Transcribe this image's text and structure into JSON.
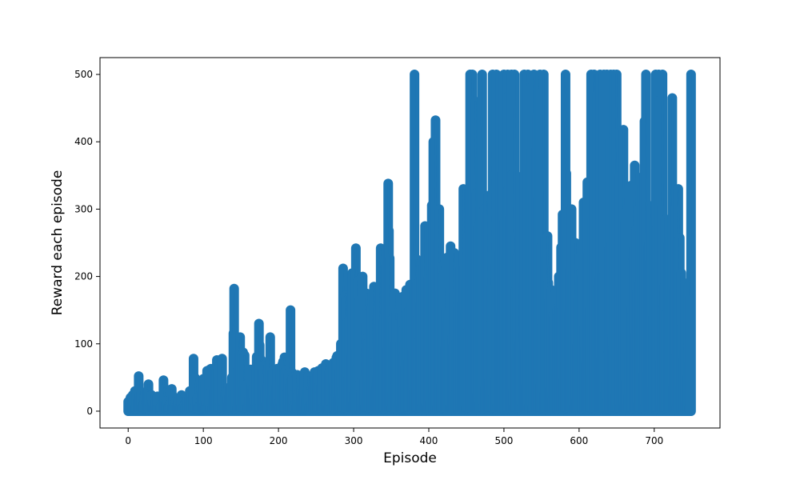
{
  "chart_data": {
    "type": "scatter",
    "title": "",
    "xlabel": "Episode",
    "ylabel": "Reward each episode",
    "xlim": [
      -37.5,
      787.5
    ],
    "ylim": [
      -25,
      525
    ],
    "xticks": [
      "0",
      "100",
      "200",
      "300",
      "400",
      "500",
      "600",
      "700"
    ],
    "yticks": [
      "0",
      "100",
      "200",
      "300",
      "400",
      "500"
    ],
    "grid": false,
    "legend": "none",
    "color": "#1f77b4",
    "n_points": 750,
    "peaks": [
      [
        0,
        14
      ],
      [
        3,
        20
      ],
      [
        6,
        24
      ],
      [
        9,
        30
      ],
      [
        14,
        52
      ],
      [
        22,
        18
      ],
      [
        27,
        40
      ],
      [
        35,
        15
      ],
      [
        39,
        22
      ],
      [
        47,
        46
      ],
      [
        51,
        16
      ],
      [
        58,
        33
      ],
      [
        63,
        14
      ],
      [
        71,
        24
      ],
      [
        78,
        14
      ],
      [
        82,
        30
      ],
      [
        87,
        78
      ],
      [
        92,
        20
      ],
      [
        100,
        48
      ],
      [
        105,
        60
      ],
      [
        110,
        63
      ],
      [
        118,
        76
      ],
      [
        125,
        78
      ],
      [
        130,
        28
      ],
      [
        138,
        50
      ],
      [
        141,
        182
      ],
      [
        144,
        48
      ],
      [
        149,
        110
      ],
      [
        155,
        83
      ],
      [
        158,
        40
      ],
      [
        163,
        62
      ],
      [
        168,
        55
      ],
      [
        174,
        130
      ],
      [
        179,
        68
      ],
      [
        184,
        38
      ],
      [
        189,
        110
      ],
      [
        193,
        60
      ],
      [
        198,
        63
      ],
      [
        203,
        65
      ],
      [
        208,
        80
      ],
      [
        213,
        56
      ],
      [
        216,
        150
      ],
      [
        220,
        24
      ],
      [
        225,
        54
      ],
      [
        230,
        30
      ],
      [
        235,
        58
      ],
      [
        240,
        52
      ],
      [
        248,
        58
      ],
      [
        253,
        60
      ],
      [
        258,
        64
      ],
      [
        263,
        70
      ],
      [
        268,
        60
      ],
      [
        273,
        72
      ],
      [
        278,
        82
      ],
      [
        283,
        100
      ],
      [
        286,
        212
      ],
      [
        290,
        168
      ],
      [
        294,
        135
      ],
      [
        298,
        205
      ],
      [
        303,
        242
      ],
      [
        308,
        165
      ],
      [
        312,
        200
      ],
      [
        317,
        175
      ],
      [
        322,
        150
      ],
      [
        327,
        185
      ],
      [
        332,
        150
      ],
      [
        336,
        242
      ],
      [
        341,
        140
      ],
      [
        346,
        338
      ],
      [
        350,
        135
      ],
      [
        355,
        175
      ],
      [
        360,
        130
      ],
      [
        365,
        170
      ],
      [
        370,
        180
      ],
      [
        375,
        188
      ],
      [
        381,
        500
      ],
      [
        385,
        190
      ],
      [
        390,
        200
      ],
      [
        395,
        275
      ],
      [
        400,
        200
      ],
      [
        406,
        400
      ],
      [
        409,
        432
      ],
      [
        414,
        300
      ],
      [
        418,
        215
      ],
      [
        424,
        228
      ],
      [
        429,
        245
      ],
      [
        434,
        235
      ],
      [
        440,
        210
      ],
      [
        446,
        330
      ],
      [
        451,
        230
      ],
      [
        455,
        500
      ],
      [
        458,
        500
      ],
      [
        462,
        460
      ],
      [
        466,
        275
      ],
      [
        471,
        500
      ],
      [
        474,
        300
      ],
      [
        479,
        320
      ],
      [
        485,
        500
      ],
      [
        490,
        500
      ],
      [
        495,
        495
      ],
      [
        500,
        500
      ],
      [
        505,
        500
      ],
      [
        510,
        500
      ],
      [
        514,
        500
      ],
      [
        518,
        230
      ],
      [
        522,
        348
      ],
      [
        527,
        500
      ],
      [
        532,
        500
      ],
      [
        536,
        480
      ],
      [
        540,
        500
      ],
      [
        544,
        440
      ],
      [
        548,
        500
      ],
      [
        553,
        500
      ],
      [
        558,
        260
      ],
      [
        563,
        180
      ],
      [
        568,
        175
      ],
      [
        573,
        200
      ],
      [
        578,
        292
      ],
      [
        582,
        500
      ],
      [
        586,
        285
      ],
      [
        590,
        300
      ],
      [
        595,
        250
      ],
      [
        601,
        230
      ],
      [
        606,
        310
      ],
      [
        611,
        340
      ],
      [
        616,
        500
      ],
      [
        620,
        500
      ],
      [
        624,
        470
      ],
      [
        628,
        500
      ],
      [
        633,
        500
      ],
      [
        637,
        500
      ],
      [
        642,
        500
      ],
      [
        646,
        500
      ],
      [
        650,
        500
      ],
      [
        654,
        350
      ],
      [
        659,
        418
      ],
      [
        664,
        300
      ],
      [
        669,
        335
      ],
      [
        674,
        365
      ],
      [
        679,
        300
      ],
      [
        684,
        335
      ],
      [
        689,
        500
      ],
      [
        693,
        250
      ],
      [
        697,
        305
      ],
      [
        702,
        500
      ],
      [
        706,
        500
      ],
      [
        711,
        500
      ],
      [
        715,
        285
      ],
      [
        719,
        250
      ],
      [
        724,
        465
      ],
      [
        728,
        300
      ],
      [
        732,
        330
      ],
      [
        736,
        205
      ],
      [
        741,
        190
      ],
      [
        745,
        185
      ],
      [
        749,
        500
      ]
    ]
  }
}
